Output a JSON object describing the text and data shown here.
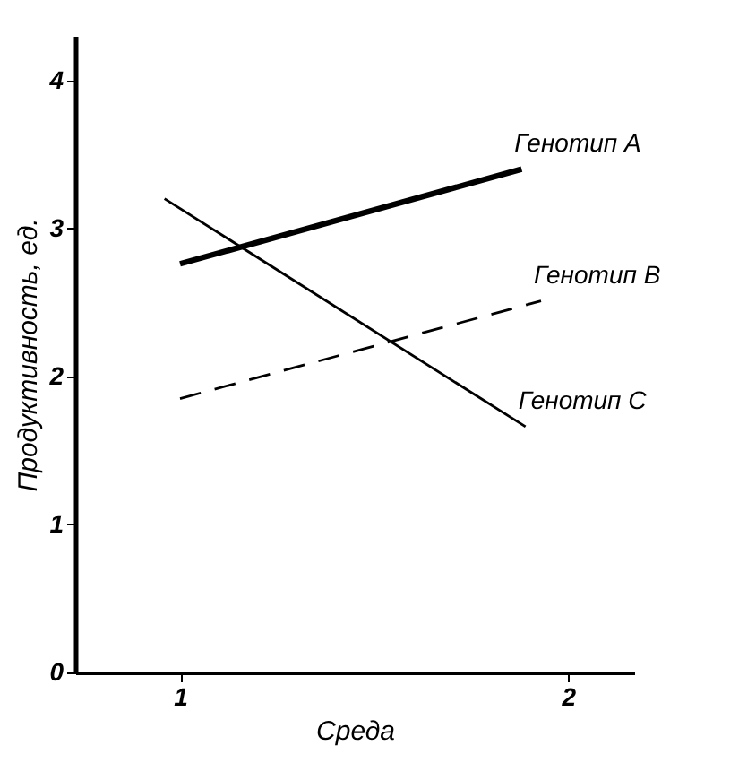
{
  "chart_data": {
    "type": "line",
    "xlabel": "Среда",
    "ylabel": "Продуктивность, ед.",
    "xlim": [
      0.73,
      2.17
    ],
    "xticks": [
      1,
      2
    ],
    "ylim": [
      0,
      4.3
    ],
    "yticks": [
      0,
      1,
      2,
      3,
      4
    ],
    "grid": false,
    "legend": false,
    "marker": "none",
    "series": [
      {
        "name": "Генотип А",
        "color": "#000000",
        "x": [
          1,
          1.88
        ],
        "values": [
          2.76,
          3.4
        ],
        "line_style": "solid"
      },
      {
        "name": "Генотип В",
        "color": "#000000",
        "x": [
          1,
          1.93
        ],
        "values": [
          1.85,
          2.51
        ],
        "line_style": "dashed"
      },
      {
        "name": "Генотип С",
        "color": "#000000",
        "x": [
          0.96,
          1.89
        ],
        "values": [
          3.2,
          1.66
        ],
        "line_style": "solid"
      }
    ]
  }
}
